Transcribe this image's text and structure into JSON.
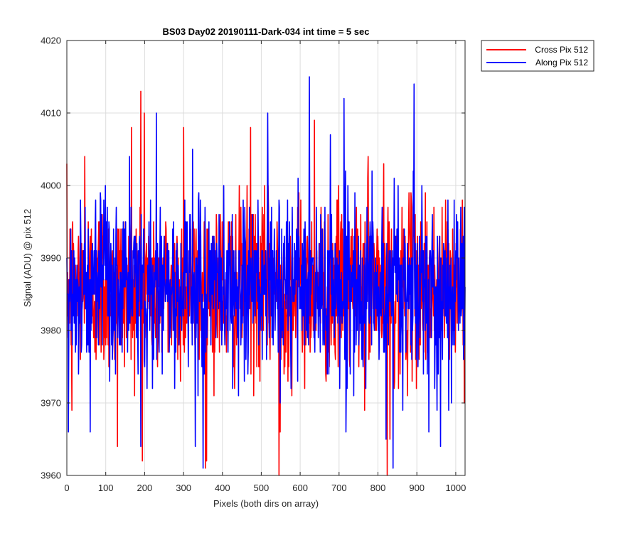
{
  "chart_data": {
    "type": "line",
    "title": "BS03 Day02 20190111-Dark-034 int time = 5 sec",
    "xlabel": "Pixels (both dirs on array)",
    "ylabel": "Signal (ADU) @ pix 512",
    "xlim": [
      0,
      1024
    ],
    "ylim": [
      3960,
      4020
    ],
    "xticks": [
      0,
      100,
      200,
      300,
      400,
      500,
      600,
      700,
      800,
      900,
      1000
    ],
    "yticks": [
      3960,
      3970,
      3980,
      3990,
      4000,
      4010,
      4020
    ],
    "grid": true,
    "legend_location": "outside-top-right",
    "noise_model": {
      "points_per_series": 1024,
      "mean": 3986,
      "sd": 6
    },
    "series": [
      {
        "name": "Cross Pix 512",
        "color": "#ff0000",
        "seed": 12345,
        "peaks": [
          [
            13,
            3969
          ],
          [
            46,
            4004
          ],
          [
            130,
            3964
          ],
          [
            166,
            4008
          ],
          [
            190,
            4013
          ],
          [
            199,
            4010
          ],
          [
            300,
            4008
          ],
          [
            356,
            3961
          ],
          [
            472,
            4008
          ],
          [
            545,
            3960
          ],
          [
            548,
            3966
          ],
          [
            636,
            4009
          ],
          [
            774,
            4004
          ],
          [
            823,
            3960
          ],
          [
            830,
            3965
          ]
        ]
      },
      {
        "name": "Along Pix 512",
        "color": "#0000ff",
        "seed": 67890,
        "peaks": [
          [
            4,
            3966
          ],
          [
            60,
            3966
          ],
          [
            190,
            3964
          ],
          [
            230,
            4010
          ],
          [
            330,
            3964
          ],
          [
            350,
            3961
          ],
          [
            516,
            4010
          ],
          [
            623,
            4015
          ],
          [
            712,
            4012
          ],
          [
            820,
            3965
          ],
          [
            838,
            3961
          ],
          [
            892,
            4014
          ],
          [
            930,
            3966
          ],
          [
            960,
            3964
          ]
        ]
      }
    ]
  }
}
